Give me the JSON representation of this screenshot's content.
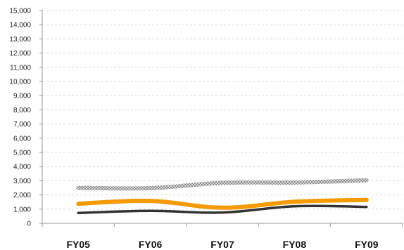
{
  "chart_data": {
    "type": "line",
    "title": "",
    "xlabel": "",
    "ylabel": "",
    "categories": [
      "FY05",
      "FY06",
      "FY07",
      "FY08",
      "FY09"
    ],
    "ylim": [
      0,
      15000
    ],
    "y_ticks": [
      0,
      1000,
      2000,
      3000,
      4000,
      5000,
      6000,
      7000,
      8000,
      9000,
      10000,
      11000,
      12000,
      13000,
      14000,
      15000
    ],
    "y_tick_labels": [
      "0",
      "1,000",
      "2,000",
      "3,000",
      "4,000",
      "5,000",
      "6,000",
      "7,000",
      "8,000",
      "9,000",
      "10,000",
      "11,000",
      "12,000",
      "13,000",
      "14,000",
      "15,000"
    ],
    "grid": "horizontal dashed",
    "legend": "none",
    "series": [
      {
        "values": [
          2500,
          2480,
          2850,
          2880,
          3030
        ],
        "color": "#b5b5b5",
        "style": "checkered"
      },
      {
        "values": [
          1380,
          1580,
          1100,
          1520,
          1650
        ],
        "color": "#f59a00",
        "style": "solid"
      },
      {
        "values": [
          730,
          880,
          760,
          1200,
          1160
        ],
        "color": "#333333",
        "style": "solid"
      }
    ]
  }
}
